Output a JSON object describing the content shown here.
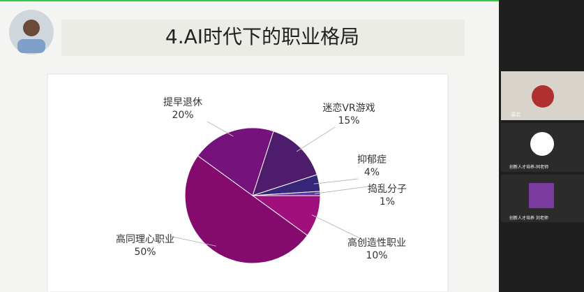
{
  "chart_data": {
    "type": "pie",
    "title": "4.AI时代下的职业格局",
    "categories": [
      "迷恋VR游戏",
      "抑郁症",
      "捣乱分子",
      "高创造性职业",
      "高同理心职业",
      "提早退休"
    ],
    "values": [
      15,
      4,
      1,
      10,
      50,
      20
    ],
    "value_labels": [
      "15%",
      "4%",
      "1%",
      "10%",
      "50%",
      "20%"
    ],
    "colors": [
      "#4e1c6c",
      "#35267a",
      "#5c3596",
      "#a0107c",
      "#850a6e",
      "#76127c"
    ]
  },
  "participants": [
    "温北",
    "创新人才培养-同老师",
    "创新人才培养 刘老师"
  ]
}
